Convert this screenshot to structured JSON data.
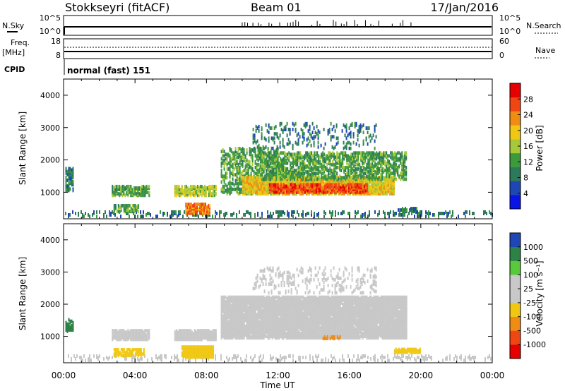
{
  "header": {
    "station": "Stokkseyri (fitACF)",
    "beam": "Beam 01",
    "date": "17/Jan/2016"
  },
  "status_panels": {
    "nsky_label": "N.Sky",
    "nsearch_label": "N.Search",
    "freq_label": "Freq.",
    "freq_unit": "[MHz]",
    "nave_label": "Nave",
    "cpid_label": "CPID",
    "cpid_text": "normal (fast) 151",
    "noise_ticks_left": [
      "10^5",
      "10^0"
    ],
    "noise_ticks_right": [
      "10^5",
      "10^0"
    ],
    "freq_ticks_left": [
      "18",
      "8"
    ],
    "nave_ticks_right": [
      "60",
      "0"
    ]
  },
  "colors": {
    "power_scale": [
      "#0a14e6",
      "#1e46b4",
      "#2d7a5a",
      "#3c9a3c",
      "#a8c83c",
      "#f0c814",
      "#f08c14",
      "#f04614",
      "#e60000"
    ],
    "velocity_scale": [
      "#1e46b4",
      "#2d8246",
      "#5ac83c",
      "#c8c8c8",
      "#c8c8c8",
      "#f0c814",
      "#f08c14",
      "#f04614",
      "#e60000"
    ]
  },
  "chart_data": [
    {
      "type": "heatmap",
      "name": "power",
      "ylabel": "Slant Range [km]",
      "xlabel": "",
      "ylim": [
        180,
        4500
      ],
      "yticks": [
        "1000",
        "2000",
        "3000",
        "4000"
      ],
      "colorbar_label": "Power [dB]",
      "colorbar_ticks": [
        "4",
        "8",
        "12",
        "16",
        "20",
        "24",
        "28"
      ],
      "clim": [
        0,
        32
      ],
      "regions": [
        {
          "t0": 0.0,
          "t1": 24.0,
          "r0": 200,
          "r1": 380,
          "v": 6,
          "density": 0.25
        },
        {
          "t0": 2.7,
          "t1": 4.8,
          "r0": 850,
          "r1": 1150,
          "v": 13,
          "density": 0.7
        },
        {
          "t0": 2.8,
          "t1": 4.2,
          "r0": 350,
          "r1": 550,
          "v": 12,
          "density": 0.6
        },
        {
          "t0": 6.2,
          "t1": 8.5,
          "r0": 850,
          "r1": 1150,
          "v": 14,
          "density": 0.75
        },
        {
          "t0": 6.8,
          "t1": 8.2,
          "r0": 300,
          "r1": 600,
          "v": 24,
          "density": 0.85
        },
        {
          "t0": 8.8,
          "t1": 12.0,
          "r0": 900,
          "r1": 2300,
          "v": 12,
          "density": 0.4
        },
        {
          "t0": 10.0,
          "t1": 18.5,
          "r0": 900,
          "r1": 1400,
          "v": 21,
          "density": 0.9
        },
        {
          "t0": 11.5,
          "t1": 17.0,
          "r0": 950,
          "r1": 1200,
          "v": 28,
          "density": 0.8
        },
        {
          "t0": 11.0,
          "t1": 19.2,
          "r0": 1350,
          "r1": 2200,
          "v": 13,
          "density": 0.55
        },
        {
          "t0": 10.5,
          "t1": 17.5,
          "r0": 2300,
          "r1": 3100,
          "v": 6,
          "density": 0.15
        },
        {
          "t0": 18.7,
          "t1": 19.8,
          "r0": 350,
          "r1": 450,
          "v": 6,
          "density": 0.7
        },
        {
          "t0": 0.1,
          "t1": 0.5,
          "r0": 1000,
          "r1": 1700,
          "v": 6,
          "density": 0.6
        }
      ]
    },
    {
      "type": "heatmap",
      "name": "velocity",
      "ylabel": "Slant Range [km]",
      "xlabel": "Time UT",
      "ylim": [
        180,
        4500
      ],
      "yticks": [
        "1000",
        "2000",
        "3000",
        "4000"
      ],
      "xticks": [
        "00:00",
        "04:00",
        "08:00",
        "12:00",
        "16:00",
        "20:00",
        "00:00"
      ],
      "xlim": [
        0,
        24
      ],
      "colorbar_label": "Velocity [m s⁻¹]",
      "colorbar_ticks": [
        "1000",
        "500",
        "100",
        "25",
        "-25",
        "-100",
        "-500",
        "-1000"
      ],
      "regions": [
        {
          "t0": 0.0,
          "t1": 24.0,
          "r0": 200,
          "r1": 380,
          "v": 3,
          "density": 0.2
        },
        {
          "t0": 2.7,
          "t1": 4.8,
          "r0": 850,
          "r1": 1150,
          "v": 3,
          "density": 0.85
        },
        {
          "t0": 2.8,
          "t1": 4.5,
          "r0": 350,
          "r1": 550,
          "v": 5,
          "density": 0.6
        },
        {
          "t0": 6.2,
          "t1": 8.5,
          "r0": 850,
          "r1": 1150,
          "v": 3,
          "density": 0.85
        },
        {
          "t0": 6.6,
          "t1": 8.4,
          "r0": 300,
          "r1": 650,
          "v": 5,
          "density": 0.85
        },
        {
          "t0": 8.8,
          "t1": 19.2,
          "r0": 900,
          "r1": 2200,
          "v": 3,
          "density": 0.9
        },
        {
          "t0": 10.5,
          "t1": 17.5,
          "r0": 2300,
          "r1": 3100,
          "v": 3,
          "density": 0.15
        },
        {
          "t0": 14.5,
          "t1": 15.5,
          "r0": 880,
          "r1": 950,
          "v": 6,
          "density": 0.6
        },
        {
          "t0": 18.5,
          "t1": 20.0,
          "r0": 450,
          "r1": 560,
          "v": 5,
          "density": 0.8
        },
        {
          "t0": 0.1,
          "t1": 0.5,
          "r0": 1100,
          "r1": 1500,
          "v": 1,
          "density": 0.6
        }
      ]
    }
  ]
}
